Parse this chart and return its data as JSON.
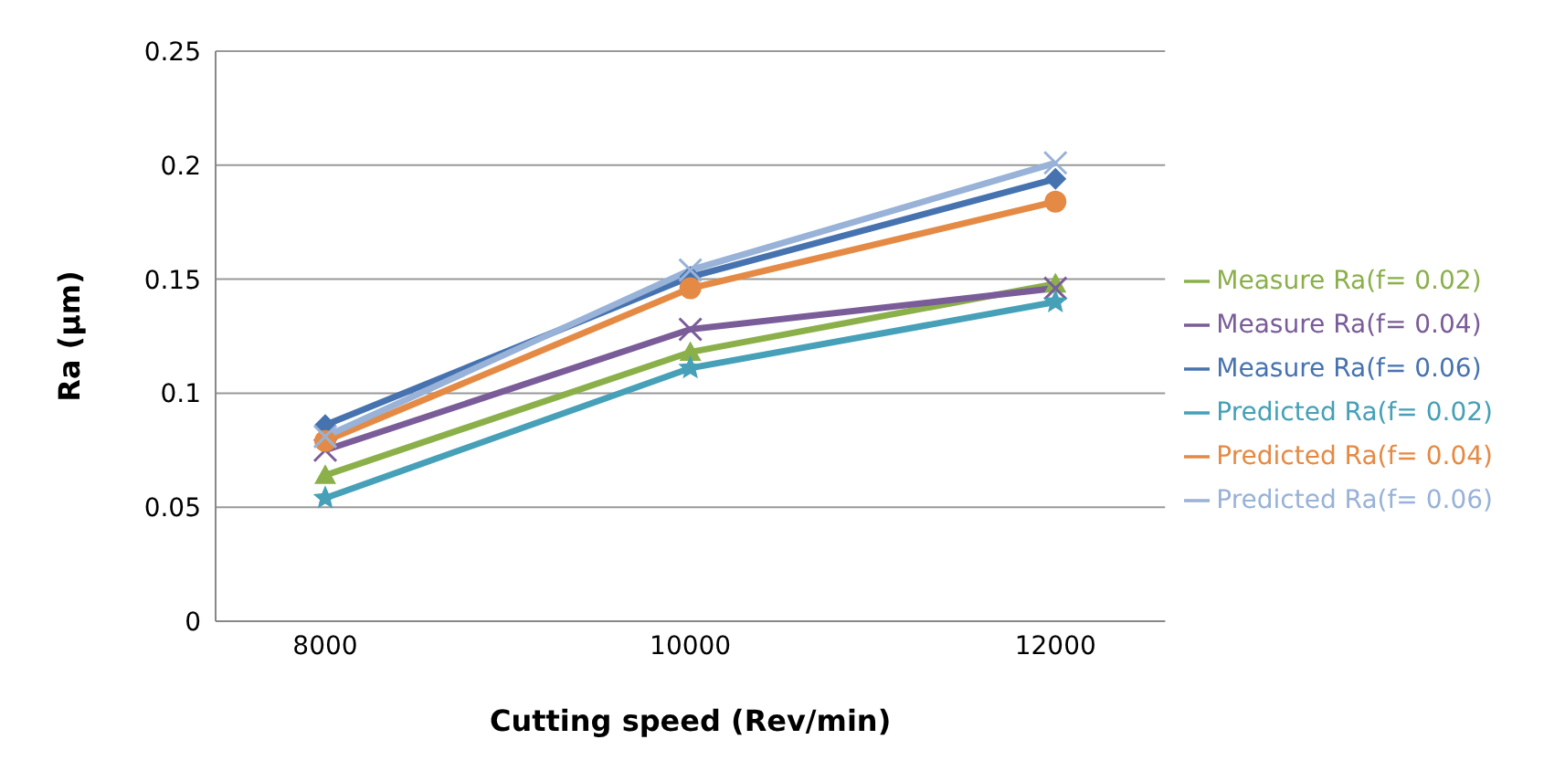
{
  "chart_data": {
    "type": "line",
    "xlabel": "Cutting speed (Rev/min)",
    "ylabel": "Ra (µm)",
    "categories": [
      "8000",
      "10000",
      "12000"
    ],
    "ylim": [
      0,
      0.25
    ],
    "yticks": [
      0,
      0.05,
      0.1,
      0.15,
      0.2,
      0.25
    ],
    "grid": "y",
    "legend": "right",
    "series": [
      {
        "name": "Measure Ra(f= 0.02)",
        "color": "#8bb04a",
        "marker": "triangle",
        "values": [
          0.064,
          0.118,
          0.148
        ]
      },
      {
        "name": "Measure Ra(f= 0.04)",
        "color": "#7a5c99",
        "marker": "cross",
        "values": [
          0.075,
          0.128,
          0.146
        ]
      },
      {
        "name": "Measure Ra(f= 0.06)",
        "color": "#4673b0",
        "marker": "diamond",
        "values": [
          0.086,
          0.151,
          0.194
        ]
      },
      {
        "name": "Predicted Ra(f= 0.02)",
        "color": "#45a0b8",
        "marker": "star",
        "values": [
          0.054,
          0.111,
          0.14
        ]
      },
      {
        "name": "Predicted Ra(f= 0.04)",
        "color": "#e58a44",
        "marker": "circle",
        "values": [
          0.079,
          0.146,
          0.184
        ]
      },
      {
        "name": "Predicted Ra(f= 0.06)",
        "color": "#98b2d8",
        "marker": "cross",
        "values": [
          0.081,
          0.154,
          0.201
        ]
      }
    ]
  }
}
